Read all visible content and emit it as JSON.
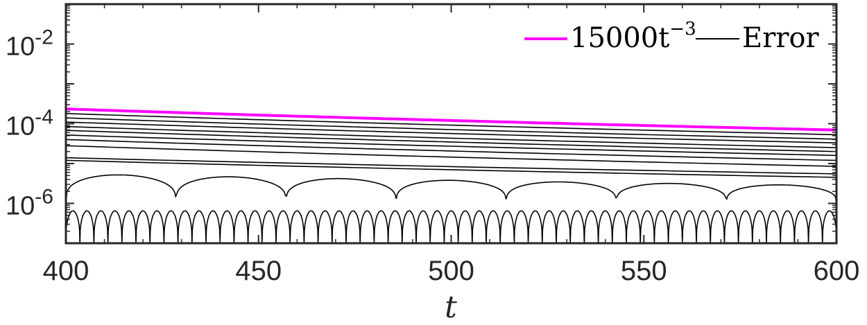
{
  "chart_data": {
    "type": "line",
    "xlabel": "t",
    "ylabel": "",
    "xlim": [
      400,
      600
    ],
    "ylim": [
      1e-07,
      0.1
    ],
    "yscale": "log",
    "grid": false,
    "legend_position": "top-right",
    "xticks": [
      400,
      450,
      500,
      550,
      600
    ],
    "xtick_labels": [
      "400",
      "450",
      "500",
      "550",
      "600"
    ],
    "yticks": [
      1e-06,
      0.0001,
      0.01
    ],
    "ytick_labels": [
      {
        "base": "10",
        "exp": "-6"
      },
      {
        "base": "10",
        "exp": "-4"
      },
      {
        "base": "10",
        "exp": "-2"
      }
    ],
    "series": [
      {
        "name": "15000t^{-3}",
        "legend_parts": {
          "base": "15000t",
          "exp": "−3"
        },
        "color": "#ff00ff",
        "formula": "15000*t^-3",
        "x": [
          400,
          600
        ],
        "y": [
          0.000234,
          6.94e-05
        ]
      },
      {
        "name": "Error",
        "legend_parts": {
          "base": "Error",
          "exp": ""
        },
        "color": "#000000",
        "description_components": [
          {
            "kind": "decay",
            "y_at_400": 0.00018,
            "y_at_600": 5.3e-05
          },
          {
            "kind": "decay",
            "y_at_400": 0.00014,
            "y_at_600": 4.1e-05
          },
          {
            "kind": "decay",
            "y_at_400": 0.00011,
            "y_at_600": 3.3e-05
          },
          {
            "kind": "decay",
            "y_at_400": 8.5e-05,
            "y_at_600": 2.5e-05
          },
          {
            "kind": "decay",
            "y_at_400": 6.8e-05,
            "y_at_600": 2e-05
          },
          {
            "kind": "decay",
            "y_at_400": 5.2e-05,
            "y_at_600": 1.6e-05
          },
          {
            "kind": "decay",
            "y_at_400": 4e-05,
            "y_at_600": 1.2e-05
          },
          {
            "kind": "decay",
            "y_at_400": 2.8e-05,
            "y_at_600": 8.5e-06
          },
          {
            "kind": "decay",
            "y_at_400": 1.4e-05,
            "y_at_600": 5.5e-06
          },
          {
            "kind": "decay",
            "y_at_400": 1.2e-05,
            "y_at_600": 4.5e-06
          },
          {
            "kind": "arches",
            "peak_at_400": 5.5e-06,
            "peak_at_600": 2.8e-06,
            "trough": 9e-07,
            "arches": 7
          },
          {
            "kind": "oscillation",
            "peak": 6.5e-07,
            "trough": 1e-07,
            "cycles": 55
          }
        ]
      }
    ]
  }
}
